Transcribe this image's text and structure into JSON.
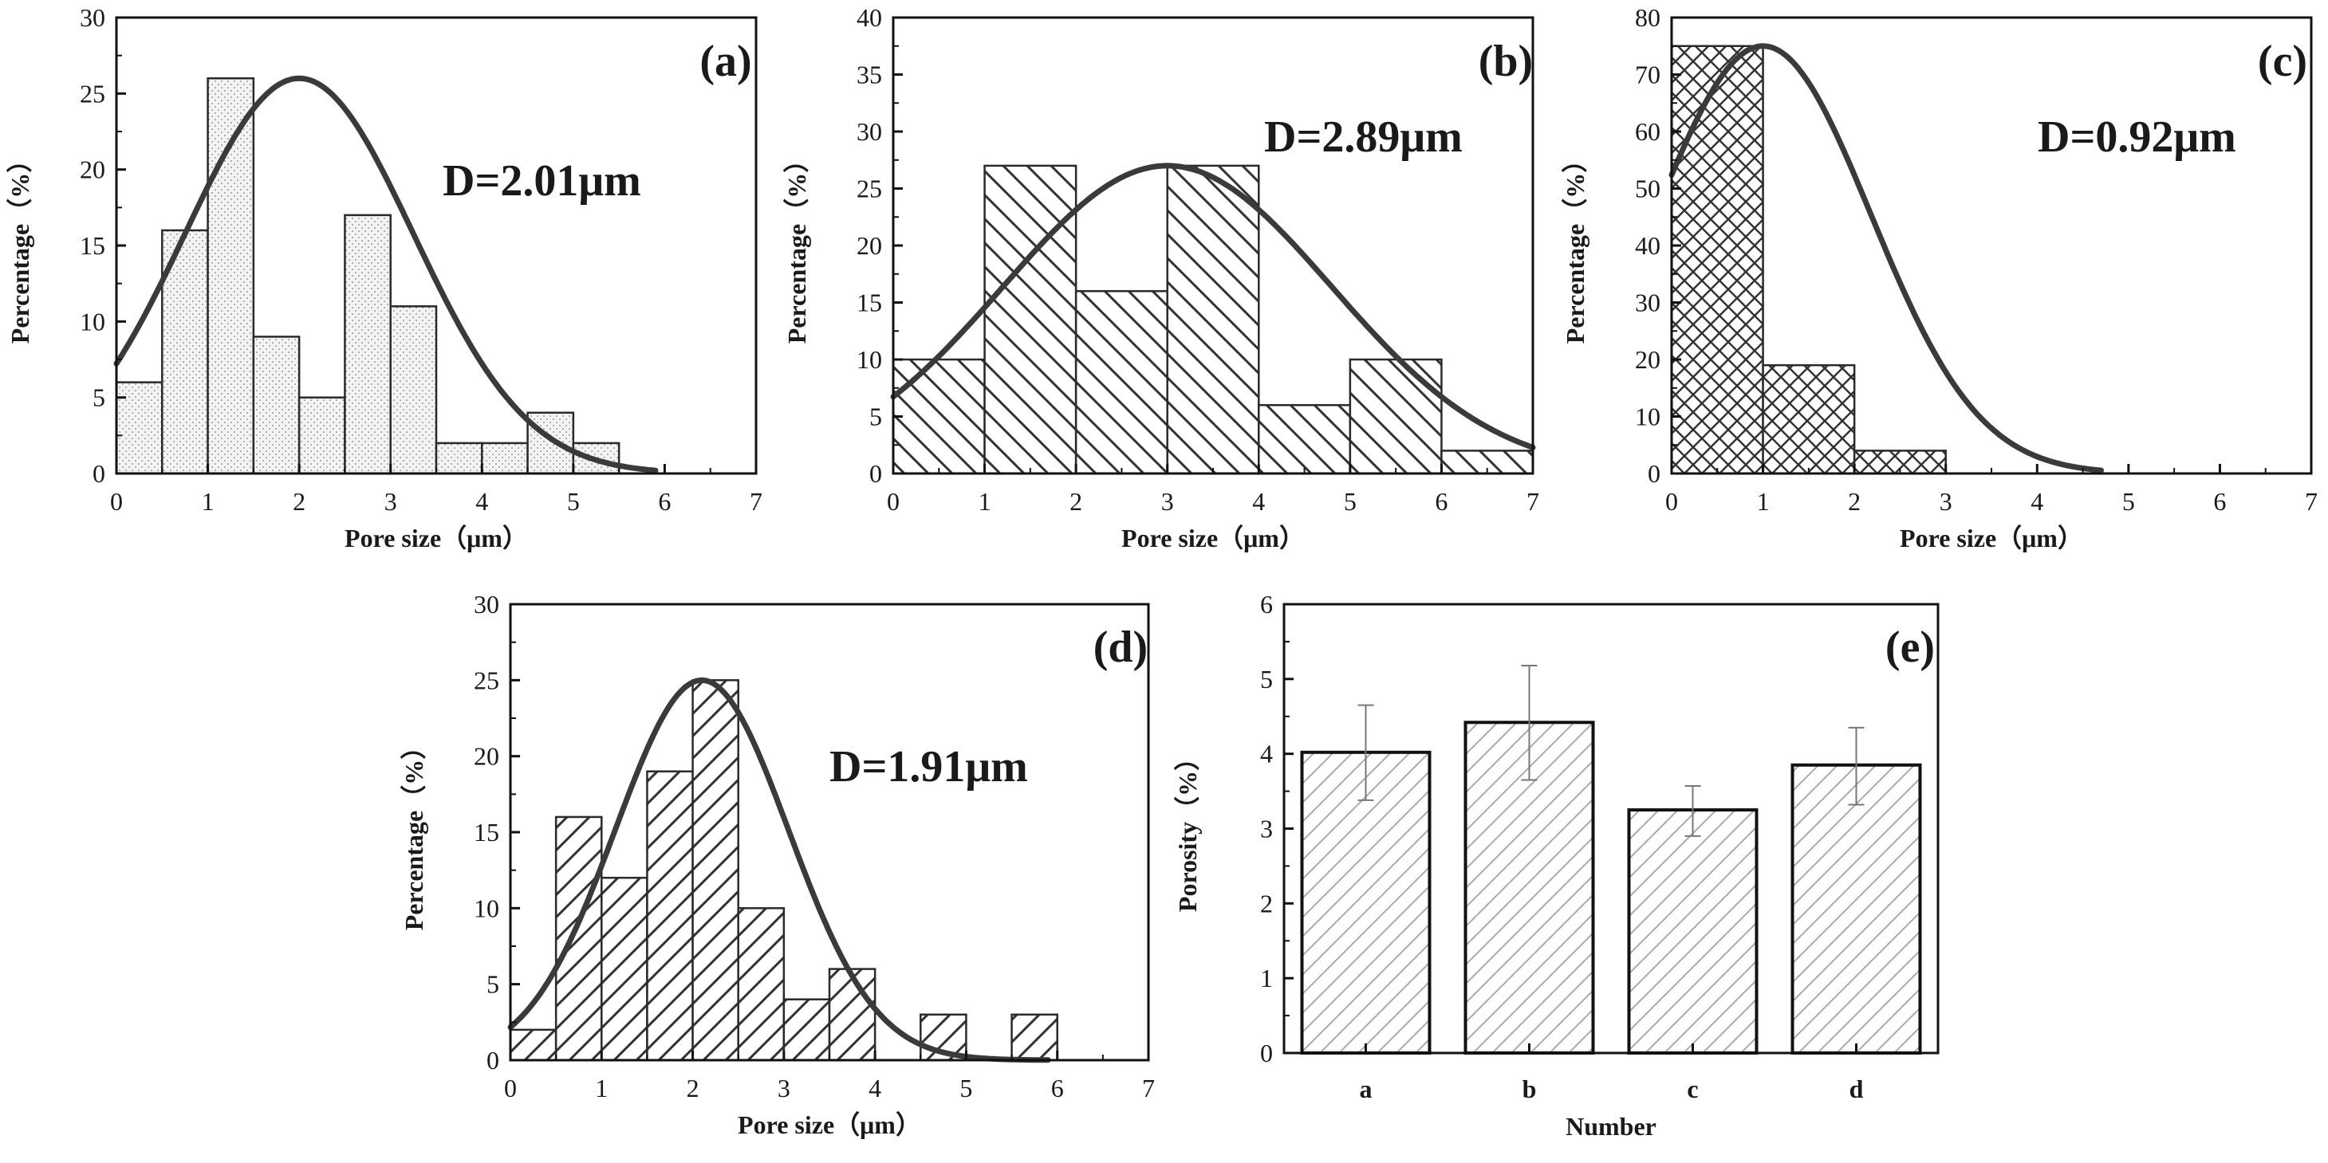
{
  "chart_data": [
    {
      "id": "a",
      "type": "bar",
      "panel_label": "(a)",
      "annotation": "D=2.01μm",
      "xlabel": "Pore size（μm）",
      "ylabel": "Percentage（%）",
      "xlim": [
        0,
        7
      ],
      "ylim": [
        0,
        30
      ],
      "xticks": [
        "0",
        "1",
        "2",
        "3",
        "4",
        "5",
        "6",
        "7"
      ],
      "yticks": [
        "0",
        "5",
        "10",
        "15",
        "20",
        "25",
        "30"
      ],
      "bin_width": 0.5,
      "pattern": "dots",
      "bars": [
        {
          "x": 0.0,
          "value": 6
        },
        {
          "x": 0.5,
          "value": 16
        },
        {
          "x": 1.0,
          "value": 26
        },
        {
          "x": 1.5,
          "value": 9
        },
        {
          "x": 2.0,
          "value": 5
        },
        {
          "x": 2.5,
          "value": 17
        },
        {
          "x": 3.0,
          "value": 11
        },
        {
          "x": 3.5,
          "value": 2
        },
        {
          "x": 4.0,
          "value": 2
        },
        {
          "x": 4.5,
          "value": 4
        },
        {
          "x": 5.0,
          "value": 2
        }
      ],
      "fit": {
        "type": "gaussian",
        "mean": 2.0,
        "sigma": 1.25,
        "peak": 26,
        "x_start": 0,
        "x_end": 5.9
      }
    },
    {
      "id": "b",
      "type": "bar",
      "panel_label": "(b)",
      "annotation": "D=2.89μm",
      "xlabel": "Pore size（μm）",
      "ylabel": "Percentage（%）",
      "xlim": [
        0,
        7
      ],
      "ylim": [
        0,
        40
      ],
      "xticks": [
        "0",
        "1",
        "2",
        "3",
        "4",
        "5",
        "6",
        "7"
      ],
      "yticks": [
        "0",
        "5",
        "10",
        "15",
        "20",
        "25",
        "30",
        "35",
        "40"
      ],
      "bin_width": 1,
      "pattern": "back-diagonal",
      "bars": [
        {
          "x": 0,
          "value": 10
        },
        {
          "x": 1,
          "value": 27
        },
        {
          "x": 2,
          "value": 16
        },
        {
          "x": 3,
          "value": 27
        },
        {
          "x": 4,
          "value": 6
        },
        {
          "x": 5,
          "value": 10
        },
        {
          "x": 6,
          "value": 2
        }
      ],
      "fit": {
        "type": "gaussian",
        "mean": 3.0,
        "sigma": 1.8,
        "peak": 27,
        "x_start": 0,
        "x_end": 7
      }
    },
    {
      "id": "c",
      "type": "bar",
      "panel_label": "(c)",
      "annotation": "D=0.92μm",
      "xlabel": "Pore size（μm）",
      "ylabel": "Percentage（%）",
      "xlim": [
        0,
        7
      ],
      "ylim": [
        0,
        80
      ],
      "xticks": [
        "0",
        "1",
        "2",
        "3",
        "4",
        "5",
        "6",
        "7"
      ],
      "yticks": [
        "0",
        "10",
        "20",
        "30",
        "40",
        "50",
        "60",
        "70",
        "80"
      ],
      "bin_width": 1,
      "pattern": "crosshatch",
      "bars": [
        {
          "x": 0,
          "value": 75
        },
        {
          "x": 1,
          "value": 19
        },
        {
          "x": 2,
          "value": 4
        }
      ],
      "fit": {
        "type": "gaussian",
        "mean": 1.0,
        "sigma": 1.18,
        "peak": 75,
        "x_start": 0,
        "x_end": 4.7
      }
    },
    {
      "id": "d",
      "type": "bar",
      "panel_label": "(d)",
      "annotation": "D=1.91μm",
      "xlabel": "Pore size（μm）",
      "ylabel": "Percentage（%）",
      "xlim": [
        0,
        7
      ],
      "ylim": [
        0,
        30
      ],
      "xticks": [
        "0",
        "1",
        "2",
        "3",
        "4",
        "5",
        "6",
        "7"
      ],
      "yticks": [
        "0",
        "5",
        "10",
        "15",
        "20",
        "25",
        "30"
      ],
      "bin_width": 0.5,
      "pattern": "forward-diagonal",
      "bars": [
        {
          "x": 0.0,
          "value": 2
        },
        {
          "x": 0.5,
          "value": 16
        },
        {
          "x": 1.0,
          "value": 12
        },
        {
          "x": 1.5,
          "value": 19
        },
        {
          "x": 2.0,
          "value": 25
        },
        {
          "x": 2.5,
          "value": 10
        },
        {
          "x": 3.0,
          "value": 4
        },
        {
          "x": 3.5,
          "value": 6
        },
        {
          "x": 4.5,
          "value": 3
        },
        {
          "x": 5.5,
          "value": 3
        }
      ],
      "fit": {
        "type": "gaussian",
        "mean": 2.1,
        "sigma": 0.95,
        "peak": 25,
        "x_start": 0,
        "x_end": 5.9
      }
    },
    {
      "id": "e",
      "type": "bar",
      "panel_label": "(e)",
      "xlabel": "Number",
      "ylabel": "Porosity（%）",
      "ylim": [
        0,
        6
      ],
      "yticks": [
        "0",
        "1",
        "2",
        "3",
        "4",
        "5",
        "6"
      ],
      "pattern": "light-diagonal",
      "categories": [
        "a",
        "b",
        "c",
        "d"
      ],
      "values": [
        4.02,
        4.42,
        3.25,
        3.85
      ],
      "error_low": [
        3.38,
        3.65,
        2.9,
        3.32
      ],
      "error_high": [
        4.65,
        5.18,
        3.57,
        4.35
      ]
    }
  ]
}
